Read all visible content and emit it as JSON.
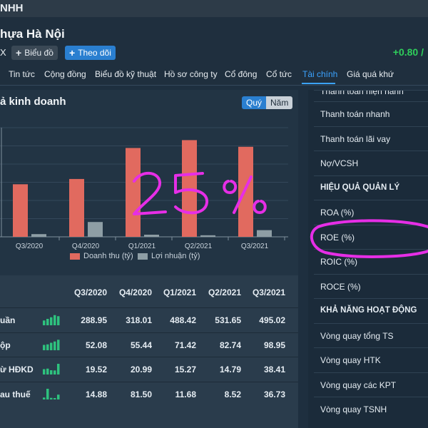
{
  "app": {
    "title": "NHH"
  },
  "header": {
    "company_name": "hựa Hà Nội",
    "ticker_fragment": "X",
    "chart_button": "Biểu đồ",
    "follow_button": "Theo dõi",
    "price_change": "+0.80 /"
  },
  "tabs": [
    {
      "label": "Tin tức",
      "active": false
    },
    {
      "label": "Cộng đồng",
      "active": false
    },
    {
      "label": "Biểu đồ kỹ thuật",
      "active": false
    },
    {
      "label": "Hồ sơ công ty",
      "active": false
    },
    {
      "label": "Cổ đông",
      "active": false
    },
    {
      "label": "Cổ tức",
      "active": false
    },
    {
      "label": "Tài chính",
      "active": true
    },
    {
      "label": "Giá quá khứ",
      "active": false
    }
  ],
  "chart_section": {
    "title": "ả kinh doanh",
    "period_buttons": {
      "quarter": "Quý",
      "year": "Năm",
      "selected": "Quý"
    },
    "annotation_text": "25%"
  },
  "chart_data": {
    "type": "bar",
    "categories": [
      "Q3/2020",
      "Q4/2020",
      "Q1/2021",
      "Q2/2021",
      "Q3/2021"
    ],
    "series": [
      {
        "name": "Doanh thu (tỷ)",
        "values": [
          288.95,
          318.01,
          488.42,
          531.65,
          495.02
        ],
        "color": "#e16a5f"
      },
      {
        "name": "Lợi nhuận (tỷ)",
        "values": [
          14.88,
          81.5,
          11.68,
          8.52,
          36.73
        ],
        "color": "#8e9ea5"
      }
    ],
    "ylim": [
      0,
      600
    ],
    "grid": true,
    "legend": "bottom"
  },
  "table": {
    "headers": [
      "Q3/2020",
      "Q4/2020",
      "Q1/2021",
      "Q2/2021",
      "Q3/2021"
    ],
    "rows": [
      {
        "name": "uần",
        "values": [
          "288.95",
          "318.01",
          "488.42",
          "531.65",
          "495.02"
        ],
        "spark": [
          0.45,
          0.6,
          0.75,
          0.95,
          0.85
        ]
      },
      {
        "name": "ộp",
        "values": [
          "52.08",
          "55.44",
          "71.42",
          "82.74",
          "98.95"
        ],
        "spark": [
          0.5,
          0.55,
          0.7,
          0.82,
          0.98
        ]
      },
      {
        "name": "ừ HĐKD",
        "values": [
          "19.52",
          "20.99",
          "15.27",
          "14.79",
          "38.41"
        ],
        "spark": [
          0.5,
          0.55,
          0.4,
          0.38,
          1.0
        ]
      },
      {
        "name": "au thuế",
        "values": [
          "14.88",
          "81.50",
          "11.68",
          "8.52",
          "36.73"
        ],
        "spark": [
          0.18,
          1.0,
          0.15,
          0.1,
          0.45
        ]
      }
    ]
  },
  "sidebar": {
    "items": [
      {
        "label": "Thanh toán hiện hành",
        "type": "item"
      },
      {
        "label": "Thanh toán nhanh",
        "type": "item"
      },
      {
        "label": "Thanh toán lãi vay",
        "type": "item"
      },
      {
        "label": "Nợ/VCSH",
        "type": "item"
      },
      {
        "label": "HIỆU QUẢ QUẢN LÝ",
        "type": "header"
      },
      {
        "label": "ROA (%)",
        "type": "item"
      },
      {
        "label": "ROE (%)",
        "type": "item"
      },
      {
        "label": "ROIC (%)",
        "type": "item"
      },
      {
        "label": "ROCE (%)",
        "type": "item"
      },
      {
        "label": "KHẢ NĂNG HOẠT ĐỘNG",
        "type": "header"
      },
      {
        "label": "Vòng quay tổng TS",
        "type": "item"
      },
      {
        "label": "Vòng quay HTK",
        "type": "item"
      },
      {
        "label": "Vòng quay các KPT",
        "type": "item"
      },
      {
        "label": "Vòng quay TSNH",
        "type": "item"
      }
    ]
  },
  "colors": {
    "accent": "#2a7fd0",
    "active_tab": "#3ba3ff",
    "positive": "#2fce5b",
    "annotation": "#e62ee6",
    "spark": "#2ec27e"
  }
}
